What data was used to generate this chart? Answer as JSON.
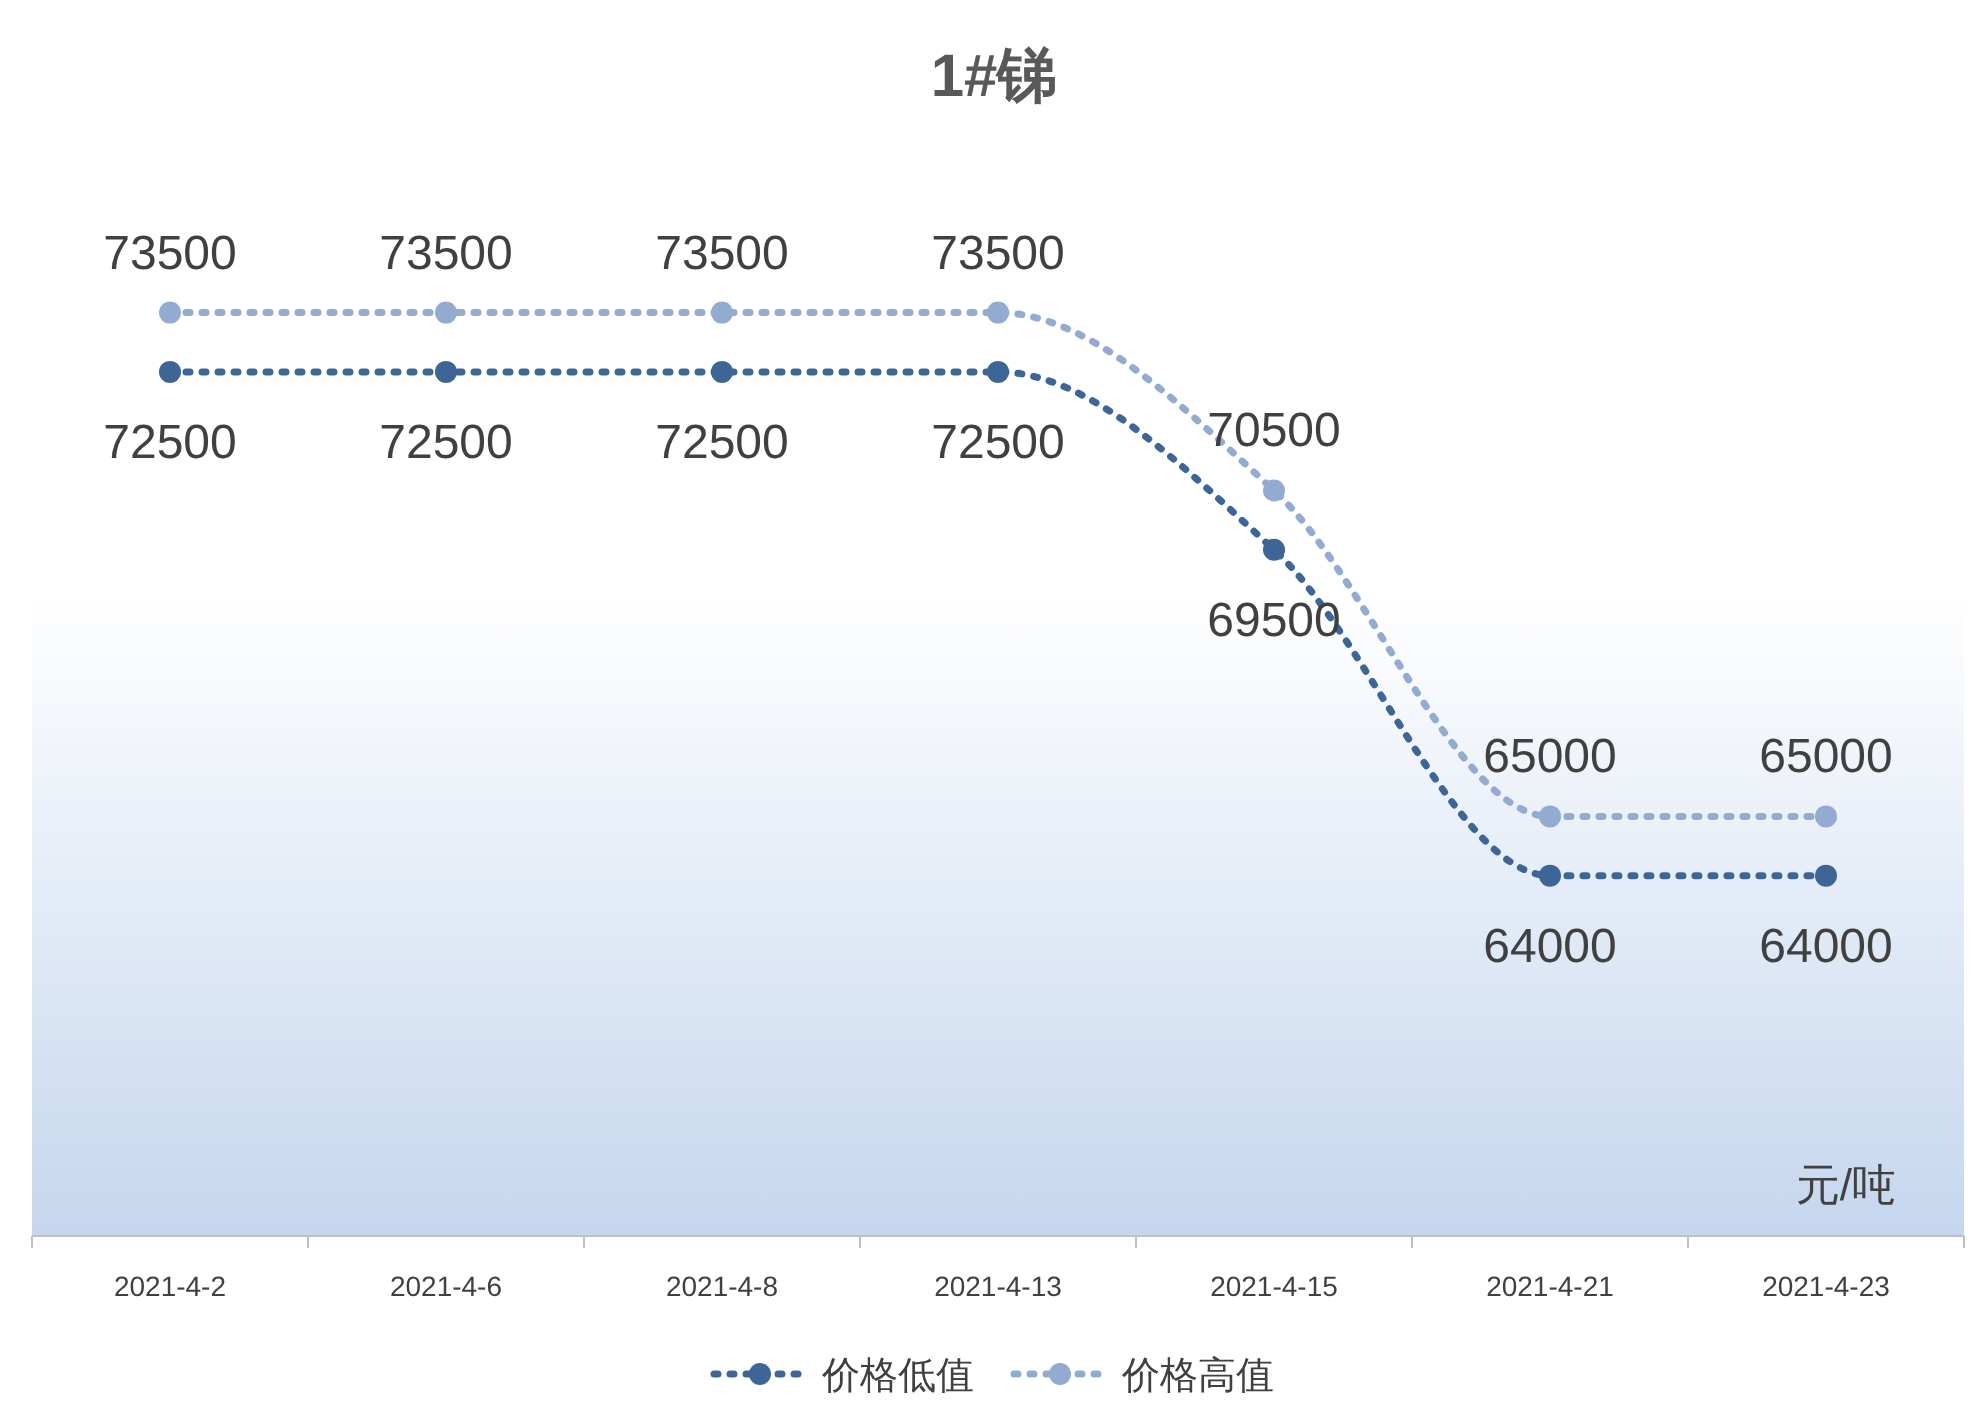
{
  "chart_data": {
    "type": "line",
    "title": "1#锑",
    "categories": [
      "2021-4-2",
      "2021-4-6",
      "2021-4-8",
      "2021-4-13",
      "2021-4-15",
      "2021-4-21",
      "2021-4-23"
    ],
    "series": [
      {
        "name": "价格低值",
        "color": "#3d6596",
        "values": [
          72500,
          72500,
          72500,
          72500,
          69500,
          64000,
          64000
        ]
      },
      {
        "name": "价格高值",
        "color": "#93abd1",
        "values": [
          73500,
          73500,
          73500,
          73500,
          70500,
          65000,
          65000
        ]
      }
    ],
    "annotations": [
      "元/吨"
    ],
    "data_labels": true,
    "legend": "bottom",
    "marker": "circle",
    "line_style": "dotted"
  }
}
